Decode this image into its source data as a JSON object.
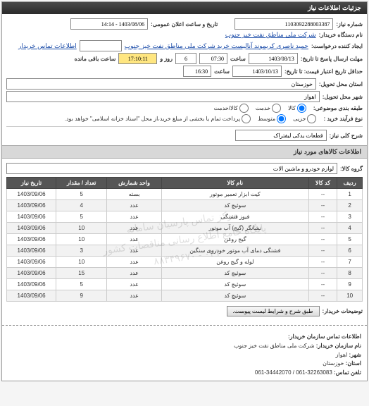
{
  "panel": {
    "title": "جزئیات اطلاعات نیاز"
  },
  "fields": {
    "need_no_label": "شماره نیاز:",
    "need_no": "1103092288003387",
    "announce_label": "تاریخ و ساعت اعلان عمومی:",
    "announce_value": "1403/08/06 - 14:14",
    "buyer_label": "نام دستگاه خریدار:",
    "buyer_value": "شرکت ملی مناطق نفت خیز جنوب",
    "creator_label": "ایجاد کننده درخواست:",
    "creator_value": "حمید ناصری کریموند آنالیست خرید شرکت ملی مناطق نفت خیز جنوب",
    "contact_link": "اطلاعات تماس خریدار",
    "deadline_send_label": "مهلت ارسال پاسخ تا تاریخ:",
    "deadline_date": "1403/08/13",
    "time_label": "ساعت",
    "deadline_time": "07:30",
    "days_label": "روز و",
    "days_value": "6",
    "remain_time": "17:10:11",
    "remain_label": "ساعت باقی مانده",
    "validity_label": "حداقل تاریخ اعتبار قیمت: تا تاریخ:",
    "validity_date": "1403/10/13",
    "validity_time": "16:30",
    "province_label": "استان محل تحویل:",
    "province_value": "خوزستان",
    "city_label": "شهر محل تحویل:",
    "city_value": "اهواز",
    "category_label": "طبقه بندی موضوعی:",
    "cat_opts": {
      "goods": "کالا",
      "service": "خدمت",
      "both": "کالا/خدمت"
    },
    "process_label": "نوع فرآیند خرید :",
    "proc_opts": {
      "small": "جزیی",
      "medium": "متوسط",
      "large": "پرداخت تمام یا بخشی از مبلغ خرید،از محل \"اسناد خزانه اسلامی\" خواهد بود."
    },
    "need_title_label": "شرح کلی نیاز:",
    "need_title": "قطعات یدکی لیفتراک"
  },
  "goods_header": "اطلاعات کالاهای مورد نیاز",
  "group_label": "گروه کالا:",
  "group_value": "لوازم خودرو و ماشین آلات",
  "table": {
    "headers": [
      "ردیف",
      "کد کالا",
      "نام کالا",
      "واحد شمارش",
      "تعداد / مقدار",
      "تاریخ نیاز"
    ],
    "rows": [
      [
        "1",
        "--",
        "کیت ابزار تعمیر موتور",
        "بسته",
        "5",
        "1403/09/06"
      ],
      [
        "2",
        "--",
        "سوئیچ کد",
        "عدد",
        "4",
        "1403/09/06"
      ],
      [
        "3",
        "--",
        "فیوز فشنگی",
        "عدد",
        "5",
        "1403/09/06"
      ],
      [
        "4",
        "--",
        "نشانگر (گیج) آب موتور",
        "عدد",
        "10",
        "1403/09/06"
      ],
      [
        "5",
        "--",
        "گیج روغن",
        "عدد",
        "10",
        "1403/09/06"
      ],
      [
        "6",
        "--",
        "فشنگی دمای آب موتور خودروی سنگین",
        "عدد",
        "3",
        "1403/09/06"
      ],
      [
        "7",
        "--",
        "لوله و گیج روغن",
        "عدد",
        "10",
        "1403/09/06"
      ],
      [
        "8",
        "--",
        "سوئیچ کد",
        "عدد",
        "15",
        "1403/09/06"
      ],
      [
        "9",
        "--",
        "سوئیچ کد",
        "عدد",
        "5",
        "1403/09/06"
      ],
      [
        "10",
        "--",
        "سوئیچ کد",
        "عدد",
        "9",
        "1403/09/06"
      ]
    ]
  },
  "watermark": {
    "line1": "مرکز تماس پارسیان سامانه",
    "line2": "پایگاه جامع اطلاع رسانی مناقصات کشور",
    "line3": "۰۲۱ - ۸۸۳۴۹۶۷۰"
  },
  "buyer_notes_label": "توضیحات خریدار:",
  "buyer_notes_btn": "طبق شرح و شرایط لیست پیوست.",
  "contact_section": {
    "title": "اطلاعات تماس سازمان خریدار:",
    "org_label": "نام سازمان خریدار:",
    "org": "شرکت ملی مناطق نفت خیز جنوب",
    "city_label": "شهر:",
    "city": "اهواز",
    "province_label": "استان:",
    "province": "خوزستان",
    "phone_label": "تلفن تماس:",
    "phone": "32263083-061 / 34442070-061"
  }
}
